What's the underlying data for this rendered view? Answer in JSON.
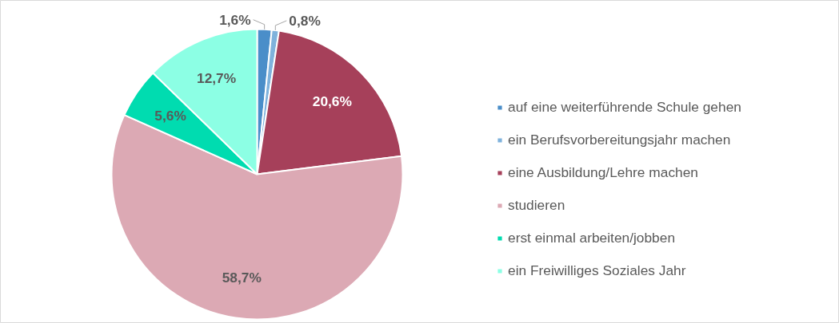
{
  "chart_data": {
    "type": "pie",
    "categories": [
      "auf eine weiterführende Schule gehen",
      "ein Berufsvorbereitungsjahr machen",
      "eine Ausbildung/Lehre machen",
      "studieren",
      "erst einmal arbeiten/jobben",
      "ein Freiwilliges Soziales Jahr"
    ],
    "values": [
      1.6,
      0.8,
      20.6,
      58.7,
      5.6,
      12.7
    ],
    "colors": [
      "#4a8ec9",
      "#7fb2dc",
      "#a6405a",
      "#dca9b4",
      "#00dcb0",
      "#8cffe4"
    ],
    "value_labels": [
      "1,6%",
      "0,8%",
      "20,6%",
      "58,7%",
      "5,6%",
      "12,7%"
    ],
    "legend": "right"
  }
}
